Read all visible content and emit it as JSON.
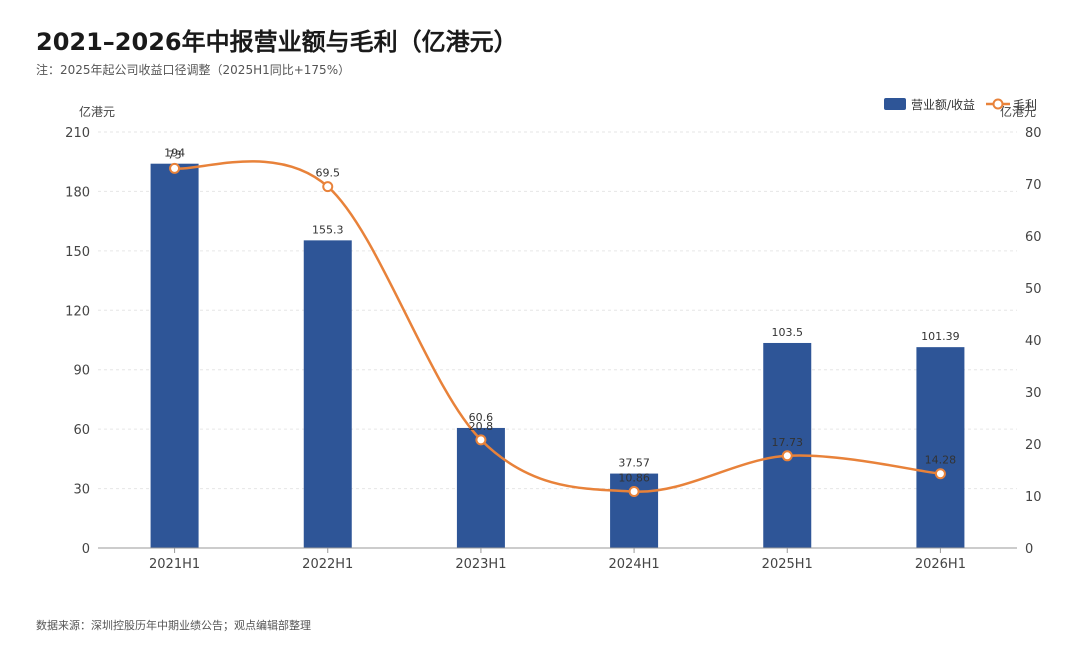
{
  "header": {
    "title": "2021–2026年中报营业额与毛利（亿港元）",
    "subtitle": "注：2025年起公司收益口径调整（2025H1同比+175%）"
  },
  "footer": {
    "source": "数据来源：深圳控股历年中期业绩公告；观点编辑部整理"
  },
  "colors": {
    "bar": "#2e5597",
    "line": "#e8823a",
    "grid": "#e6e6e6",
    "axis": "#999999"
  },
  "chart_data": {
    "type": "bar",
    "title": "2021–2026年中报营业额与毛利（亿港元）",
    "categories": [
      "2021H1",
      "2022H1",
      "2023H1",
      "2024H1",
      "2025H1",
      "2026H1"
    ],
    "y_left_label": "亿港元",
    "y_right_label": "亿港元",
    "y_left_range": [
      0,
      210
    ],
    "y_left_ticks": [
      0,
      30,
      60,
      90,
      120,
      150,
      180,
      210
    ],
    "y_right_range": [
      0,
      80
    ],
    "y_right_ticks": [
      0,
      10,
      20,
      30,
      40,
      50,
      60,
      70,
      80
    ],
    "grid": true,
    "legend_position": "top-right",
    "series": [
      {
        "name": "营业额/收益",
        "type": "bar",
        "axis": "left",
        "values": [
          194,
          155.3,
          60.6,
          37.57,
          103.5,
          101.39
        ],
        "labels": [
          "194",
          "155.3",
          "60.6",
          "37.57",
          "103.5",
          "101.39"
        ]
      },
      {
        "name": "毛利",
        "type": "line",
        "axis": "right",
        "values": [
          73,
          69.5,
          20.8,
          10.86,
          17.73,
          14.28
        ],
        "labels": [
          "73",
          "69.5",
          "20.8",
          "10.86",
          "17.73",
          "14.28"
        ]
      }
    ]
  }
}
